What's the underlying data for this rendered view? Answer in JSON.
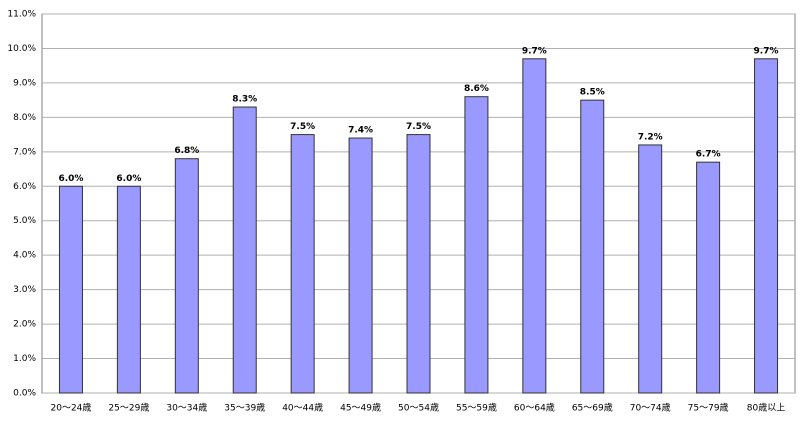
{
  "chart_data": {
    "type": "bar",
    "categories": [
      "20～24歳",
      "25～29歳",
      "30～34歳",
      "35～39歳",
      "40～44歳",
      "45～49歳",
      "50～54歳",
      "55～59歳",
      "60～64歳",
      "65～69歳",
      "70～74歳",
      "75～79歳",
      "80歳以上"
    ],
    "values": [
      6.0,
      6.0,
      6.8,
      8.3,
      7.5,
      7.4,
      7.5,
      8.6,
      9.7,
      8.5,
      7.2,
      6.7,
      9.7
    ],
    "value_labels": [
      "6.0%",
      "6.0%",
      "6.8%",
      "8.3%",
      "7.5%",
      "7.4%",
      "7.5%",
      "8.6%",
      "9.7%",
      "8.5%",
      "7.2%",
      "6.7%",
      "9.7%"
    ],
    "color": "#9999ff",
    "ylim": [
      0,
      11
    ],
    "yticks": [
      {
        "value": 0,
        "label": "0.0%"
      },
      {
        "value": 1,
        "label": "1.0%"
      },
      {
        "value": 2,
        "label": "2.0%"
      },
      {
        "value": 3,
        "label": "3.0%"
      },
      {
        "value": 4,
        "label": "4.0%"
      },
      {
        "value": 5,
        "label": "5.0%"
      },
      {
        "value": 6,
        "label": "6.0%"
      },
      {
        "value": 7,
        "label": "7.0%"
      },
      {
        "value": 8,
        "label": "8.0%"
      },
      {
        "value": 9,
        "label": "9.0%"
      },
      {
        "value": 10,
        "label": "10.0%"
      },
      {
        "value": 11,
        "label": "11.0%"
      }
    ],
    "grid": true
  }
}
